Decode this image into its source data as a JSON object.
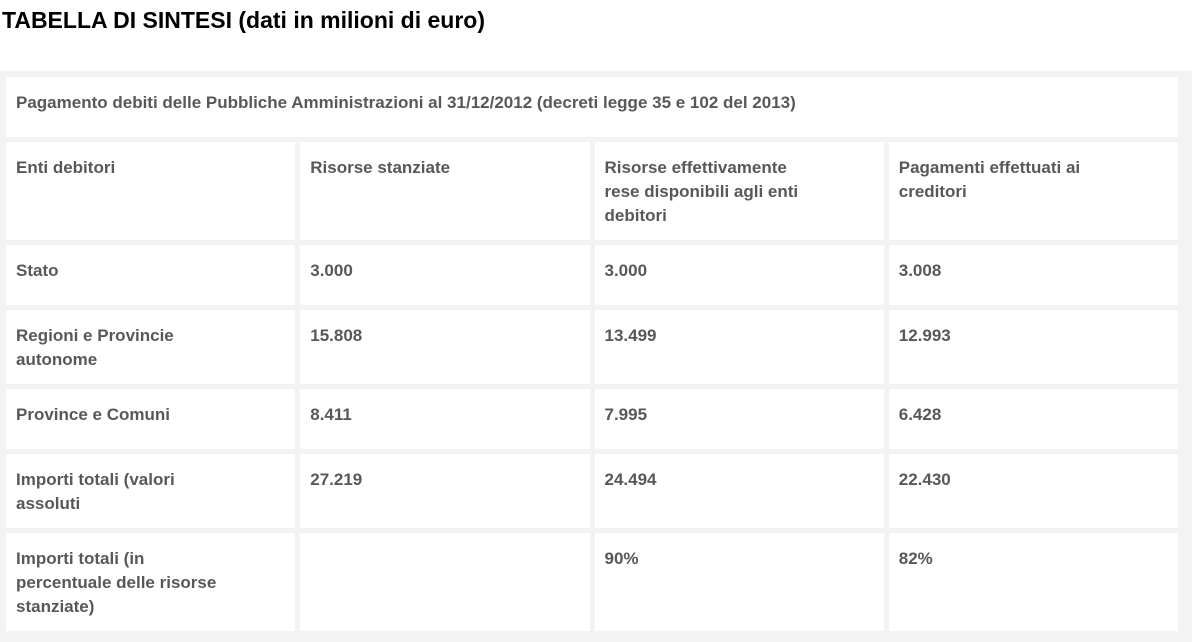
{
  "page_title": "TABELLA DI SINTESI (dati in milioni di euro)",
  "table": {
    "caption": "Pagamento debiti delle Pubbliche Amministrazioni al 31/12/2012 (decreti legge 35 e 102 del 2013)",
    "columns": [
      "Enti debitori",
      "Risorse stanziate",
      "Risorse effettivamente\nrese disponibili agli enti\ndebitori",
      "Pagamenti effettuati ai\ncreditori"
    ],
    "rows": [
      {
        "label": "Stato",
        "values": [
          "3.000",
          "3.000",
          "3.008"
        ]
      },
      {
        "label": "Regioni e Provincie\nautonome",
        "values": [
          "15.808",
          "13.499",
          "12.993"
        ]
      },
      {
        "label": "Province e Comuni",
        "values": [
          "8.411",
          "7.995",
          "6.428"
        ]
      },
      {
        "label": "Importi totali (valori\nassoluti",
        "values": [
          "27.219",
          "24.494",
          "22.430"
        ]
      },
      {
        "label": "Importi totali (in\npercentuale delle risorse\nstanziate)",
        "values": [
          "",
          "90%",
          "82%"
        ]
      }
    ]
  },
  "colors": {
    "table_background": "#f3f3f3",
    "cell_background": "#ffffff",
    "body_text": "#57585a",
    "title_text": "#000000"
  }
}
